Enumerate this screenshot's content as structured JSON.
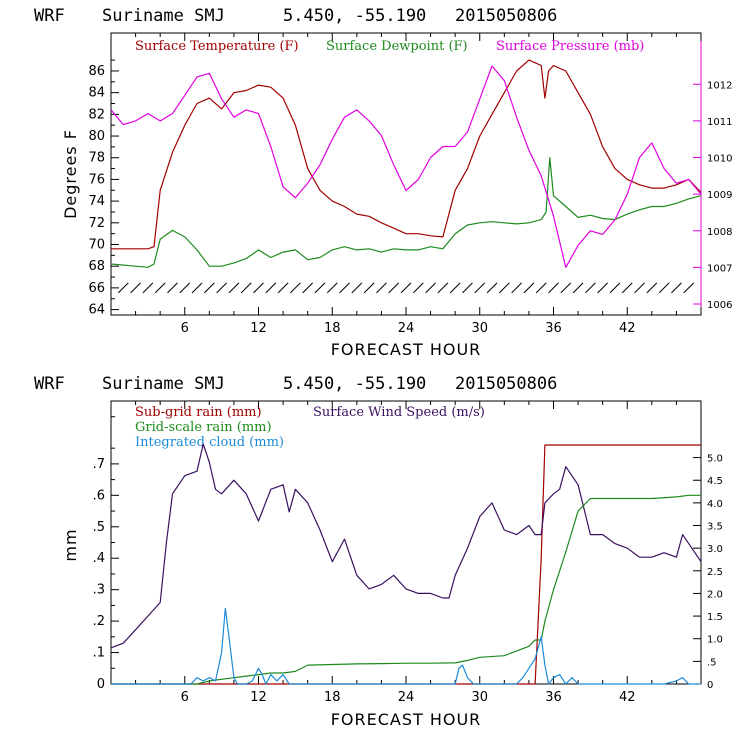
{
  "chart_data": [
    {
      "type": "line",
      "header": {
        "model": "WRF",
        "location": "Suriname SMJ",
        "coords": "5.450, -55.190",
        "run": "2015050806"
      },
      "xlabel": "FORECAST HOUR",
      "ylabel": "Degrees F",
      "xlim": [
        0,
        48
      ],
      "x_ticks": [
        "6",
        "12",
        "18",
        "24",
        "30",
        "36",
        "42"
      ],
      "ylim": [
        63.5,
        89.5
      ],
      "y_ticks": [
        "64",
        "66",
        "68",
        "70",
        "72",
        "74",
        "76",
        "78",
        "80",
        "82",
        "84",
        "86"
      ],
      "y2lim": [
        1005.7,
        1013.4
      ],
      "y2_ticks": [
        "1006",
        "1007",
        "1008",
        "1009",
        "1010",
        "1011",
        "1012"
      ],
      "legend": [
        {
          "label": "Surface Temperature (F)",
          "color": "#a00000"
        },
        {
          "label": "Surface Dewpoint (F)",
          "color": "#1e8a1e"
        },
        {
          "label": "Surface Pressure (mb)",
          "color": "#e000e0"
        }
      ],
      "wind_barb_row": {
        "y_value": 66,
        "color": "#000000"
      },
      "series": [
        {
          "name": "Surface Temperature (F)",
          "axis": "left",
          "color": "#a00000",
          "x": [
            0,
            3,
            3.5,
            4,
            5,
            6,
            7,
            8,
            9,
            10,
            11,
            12,
            13,
            14,
            15,
            16,
            17,
            18,
            19,
            20,
            21,
            22,
            23,
            24,
            25,
            26,
            27,
            28,
            29,
            30,
            31,
            32,
            33,
            34,
            35,
            35.3,
            35.6,
            36,
            37,
            38,
            39,
            40,
            41,
            42,
            43,
            44,
            45,
            46,
            47,
            48
          ],
          "y": [
            69.6,
            69.6,
            69.8,
            75,
            78.5,
            81,
            83,
            83.5,
            82.5,
            84,
            84.2,
            84.7,
            84.5,
            83.5,
            81,
            77,
            75,
            74,
            73.5,
            72.8,
            72.6,
            72,
            71.5,
            71,
            71,
            70.8,
            70.7,
            75,
            77,
            80,
            82,
            84,
            86,
            87,
            86.5,
            83.5,
            86,
            86.5,
            86,
            84,
            82,
            79,
            77,
            76,
            75.5,
            75.2,
            75.2,
            75.5,
            76,
            74.8
          ]
        },
        {
          "name": "Surface Dewpoint (F)",
          "axis": "left",
          "color": "#1e8a1e",
          "x": [
            0,
            3,
            3.5,
            4,
            5,
            6,
            7,
            8,
            9,
            10,
            11,
            12,
            13,
            14,
            15,
            16,
            17,
            18,
            19,
            20,
            21,
            22,
            23,
            24,
            25,
            26,
            27,
            28,
            29,
            30,
            31,
            32,
            33,
            34,
            35,
            35.4,
            35.7,
            36,
            37,
            38,
            39,
            40,
            41,
            42,
            43,
            44,
            45,
            46,
            47,
            48
          ],
          "y": [
            68.2,
            67.9,
            68.2,
            70.5,
            71.3,
            70.7,
            69.5,
            68,
            68,
            68.3,
            68.7,
            69.5,
            68.8,
            69.3,
            69.5,
            68.6,
            68.8,
            69.5,
            69.8,
            69.5,
            69.6,
            69.3,
            69.6,
            69.5,
            69.5,
            69.8,
            69.6,
            71,
            71.8,
            72,
            72.1,
            72,
            71.9,
            72,
            72.3,
            73,
            78,
            74.5,
            73.5,
            72.5,
            72.7,
            72.4,
            72.3,
            72.8,
            73.2,
            73.5,
            73.5,
            73.8,
            74.2,
            74.5
          ]
        },
        {
          "name": "Surface Pressure (mb)",
          "axis": "right",
          "color": "#e000e0",
          "x": [
            0,
            1,
            2,
            3,
            4,
            5,
            6,
            7,
            8,
            9,
            10,
            11,
            12,
            13,
            14,
            15,
            16,
            17,
            18,
            19,
            20,
            21,
            22,
            23,
            24,
            25,
            26,
            27,
            28,
            29,
            30,
            31,
            32,
            33,
            34,
            35,
            36,
            37,
            38,
            39,
            40,
            41,
            42,
            43,
            44,
            45,
            46,
            47,
            48
          ],
          "y": [
            1011.3,
            1010.9,
            1011.0,
            1011.2,
            1011.0,
            1011.2,
            1011.7,
            1012.2,
            1012.3,
            1011.6,
            1011.1,
            1011.3,
            1011.2,
            1010.3,
            1009.2,
            1008.9,
            1009.3,
            1009.8,
            1010.5,
            1011.1,
            1011.3,
            1011.0,
            1010.6,
            1009.8,
            1009.1,
            1009.4,
            1010.0,
            1010.3,
            1010.3,
            1010.7,
            1011.6,
            1012.5,
            1012.1,
            1011.1,
            1010.2,
            1009.5,
            1008.4,
            1007.0,
            1007.6,
            1008.0,
            1007.9,
            1008.3,
            1009.0,
            1010.0,
            1010.4,
            1009.7,
            1009.3,
            1009.4,
            1009.0
          ]
        }
      ]
    },
    {
      "type": "line",
      "header": {
        "model": "WRF",
        "location": "Suriname SMJ",
        "coords": "5.450, -55.190",
        "run": "2015050806"
      },
      "xlabel": "FORECAST HOUR",
      "ylabel": "mm",
      "xlim": [
        0,
        48
      ],
      "x_ticks": [
        "6",
        "12",
        "18",
        "24",
        "30",
        "36",
        "42"
      ],
      "ylim": [
        0,
        0.9
      ],
      "y_ticks": [
        "0",
        ".1",
        ".2",
        ".3",
        ".4",
        ".5",
        ".6",
        ".7"
      ],
      "y2lim": [
        0,
        6.25
      ],
      "y2_ticks": [
        "0",
        ".5",
        "1.0",
        "1.5",
        "2.0",
        "2.5",
        "3.0",
        "3.5",
        "4.0",
        "4.5",
        "5.0"
      ],
      "legend": [
        {
          "label": "Sub-grid rain (mm)",
          "color": "#a00000"
        },
        {
          "label": "Surface Wind Speed (m/s)",
          "color": "#3a1060"
        },
        {
          "label": "Grid-scale rain (mm)",
          "color": "#1e8a1e"
        },
        {
          "label": "Integrated cloud (mm)",
          "color": "#1c8ad8"
        }
      ],
      "series": [
        {
          "name": "Sub-grid rain (mm)",
          "axis": "left",
          "color": "#a00000",
          "x": [
            0,
            34.5,
            35,
            35.3,
            48
          ],
          "y": [
            0,
            0,
            0.4,
            0.76,
            0.76
          ]
        },
        {
          "name": "Surface Wind Speed (m/s)",
          "axis": "right",
          "color": "#3a1060",
          "x": [
            0,
            1,
            2,
            3,
            4,
            4.5,
            5,
            6,
            7,
            7.5,
            8,
            8.5,
            9,
            10,
            11,
            12,
            13,
            14,
            14.5,
            15,
            16,
            17,
            18,
            19,
            20,
            21,
            22,
            23,
            24,
            25,
            26,
            27,
            27.5,
            28,
            29,
            30,
            31,
            32,
            33,
            34,
            34.5,
            35,
            35.3,
            36,
            36.5,
            37,
            38,
            39,
            40,
            41,
            42,
            43,
            44,
            45,
            46,
            46.5,
            47,
            48
          ],
          "y": [
            0.8,
            0.9,
            1.2,
            1.5,
            1.8,
            3.1,
            4.2,
            4.6,
            4.7,
            5.3,
            4.9,
            4.3,
            4.2,
            4.5,
            4.2,
            3.6,
            4.3,
            4.4,
            3.8,
            4.3,
            4.0,
            3.4,
            2.7,
            3.2,
            2.4,
            2.1,
            2.2,
            2.4,
            2.1,
            2.0,
            2.0,
            1.9,
            1.9,
            2.4,
            3.0,
            3.7,
            4.0,
            3.4,
            3.3,
            3.5,
            3.3,
            3.3,
            4.0,
            4.2,
            4.3,
            4.8,
            4.4,
            3.3,
            3.3,
            3.1,
            3.0,
            2.8,
            2.8,
            2.9,
            2.8,
            3.3,
            3.1,
            2.7
          ]
        },
        {
          "name": "Grid-scale rain (mm)",
          "axis": "left",
          "color": "#1e8a1e",
          "x": [
            0,
            7,
            8,
            10,
            11,
            12,
            13,
            14,
            15,
            16,
            18,
            20,
            22,
            24,
            26,
            28,
            29,
            30,
            32,
            34,
            34.5,
            35,
            35.3,
            36,
            37,
            38,
            39,
            40,
            42,
            44,
            46,
            47,
            48
          ],
          "y": [
            0,
            0,
            0.01,
            0.02,
            0.025,
            0.03,
            0.035,
            0.035,
            0.04,
            0.06,
            0.062,
            0.064,
            0.065,
            0.066,
            0.066,
            0.067,
            0.075,
            0.085,
            0.09,
            0.12,
            0.14,
            0.14,
            0.2,
            0.3,
            0.42,
            0.55,
            0.59,
            0.59,
            0.59,
            0.59,
            0.595,
            0.6,
            0.6
          ]
        },
        {
          "name": "Integrated cloud (mm)",
          "axis": "left",
          "color": "#1c8ad8",
          "x": [
            0,
            6.5,
            7,
            7.5,
            8,
            8.5,
            9,
            9.3,
            9.6,
            10,
            10.3,
            11,
            11.5,
            12,
            12.3,
            12.6,
            13,
            13.5,
            14,
            14.5,
            15,
            28,
            28.3,
            28.6,
            29,
            29.5,
            33,
            33.5,
            34,
            34.5,
            35,
            35.3,
            35.6,
            36,
            36.5,
            37,
            37.5,
            38,
            45,
            46,
            46.5,
            47,
            48
          ],
          "y": [
            0,
            0,
            0.02,
            0.01,
            0.02,
            0.01,
            0.1,
            0.24,
            0.15,
            0.02,
            0,
            0,
            0.01,
            0.05,
            0.03,
            0,
            0.03,
            0.01,
            0.03,
            0,
            0,
            0,
            0.05,
            0.06,
            0.02,
            0,
            0,
            0.02,
            0.05,
            0.08,
            0.15,
            0.06,
            0,
            0.02,
            0.03,
            0,
            0.02,
            0,
            0,
            0.01,
            0.02,
            0,
            0
          ]
        }
      ]
    }
  ]
}
